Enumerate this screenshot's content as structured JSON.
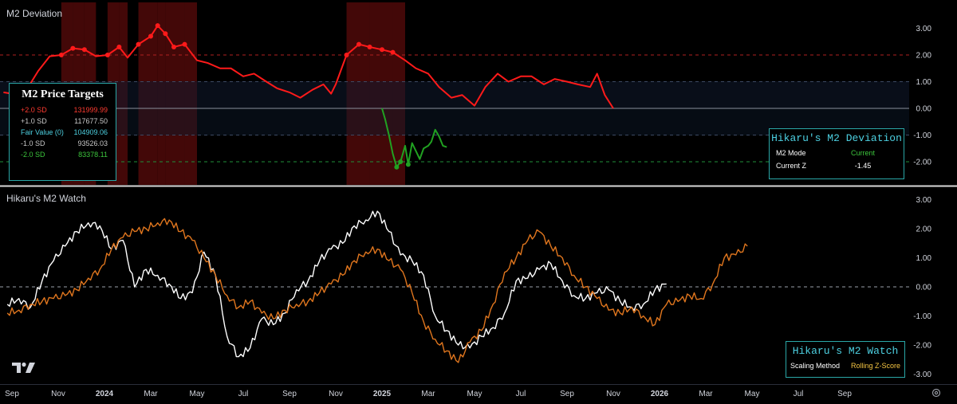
{
  "colors": {
    "red_series": "#ff1a1a",
    "green_series": "#21a121",
    "white_series": "#ffffff",
    "orange_series": "#e0761e",
    "teal_border": "#2aa7a7",
    "teal_text": "#4dd0e1"
  },
  "top_panel": {
    "title": "M2 Deviation"
  },
  "bottom_panel": {
    "title": "Hikaru's M2 Watch"
  },
  "price_targets": {
    "title": "M2 Price Targets",
    "rows": [
      {
        "label": "+2.0 SD",
        "value": "131999.99",
        "color": "#ff3b30"
      },
      {
        "label": "+1.0 SD",
        "value": "117677.50",
        "color": "#c8c8c8"
      },
      {
        "label": "Fair Value (0)",
        "value": "104909.06",
        "color": "#4dd0e1"
      },
      {
        "label": "-1.0 SD",
        "value": "93526.03",
        "color": "#c8c8c8"
      },
      {
        "label": "-2.0 SD",
        "value": "83378.11",
        "color": "#3cc43c"
      }
    ]
  },
  "deviation_box": {
    "title": "Hikaru's M2 Deviation",
    "rows": [
      {
        "key": "M2 Mode",
        "value": "Current",
        "color": "#3cc43c"
      },
      {
        "key": "Current Z",
        "value": "-1.45",
        "color": "#ffffff"
      }
    ]
  },
  "watch_box": {
    "title": "Hikaru's M2 Watch",
    "key": "Scaling Method",
    "value": "Rolling Z-Score",
    "value_color": "#f5c542"
  },
  "icons": {
    "logo": "tradingview-logo-icon",
    "settings": "gear-icon"
  },
  "chart_data": [
    {
      "type": "line",
      "title": "M2 Deviation",
      "x_axis_labels": [
        "Sep",
        "Nov",
        "2024",
        "Mar",
        "May",
        "Jul",
        "Sep",
        "Nov",
        "2025",
        "Mar",
        "May",
        "Jul",
        "Sep",
        "Nov",
        "2026",
        "Mar",
        "May",
        "Jul",
        "Sep"
      ],
      "y_ticks": [
        "3.00",
        "2.00",
        "1.00",
        "0.00",
        "-1.00",
        "-2.00"
      ],
      "ylim": [
        -2.85,
        3.5
      ],
      "reference_lines": [
        2.0,
        1.0,
        0.0,
        -1.0,
        -2.0
      ],
      "series": [
        {
          "color": "#ff1a1a",
          "x": [
            "Aug 20",
            "Sep 1",
            "Sep 20",
            "Oct 5",
            "Oct 20",
            "Nov 5",
            "Nov 20",
            "Dec 5",
            "Dec 20",
            "Jan 5",
            "Jan 20",
            "Feb 1",
            "Feb 15",
            "Mar 1",
            "Mar 10",
            "Mar 20",
            "Apr 1",
            "Apr 15",
            "May 1",
            "May 15",
            "Jun 1",
            "Jun 15",
            "Jul 1",
            "Jul 15",
            "Aug 1",
            "Aug 15",
            "Sep 1",
            "Sep 15",
            "Oct 1",
            "Oct 15",
            "Oct 25",
            "Nov 1",
            "Nov 15",
            "Dec 1",
            "Dec 15",
            "Jan 1",
            "Jan 15",
            "Feb 1",
            "Feb 15",
            "Mar 1",
            "Mar 15",
            "Apr 1",
            "Apr 15",
            "May 1",
            "May 15",
            "Jun 1",
            "Jun 15",
            "Jul 1",
            "Jul 15",
            "Aug 1",
            "Aug 15",
            "Sep 1",
            "Sep 15",
            "Oct 1",
            "Oct 10",
            "Oct 20",
            "Nov 1"
          ],
          "y": [
            0.6,
            0.55,
            0.7,
            1.4,
            1.95,
            2.0,
            2.25,
            2.2,
            1.95,
            2.0,
            2.3,
            1.9,
            2.4,
            2.7,
            3.1,
            2.8,
            2.3,
            2.4,
            1.8,
            1.7,
            1.5,
            1.5,
            1.2,
            1.3,
            1.0,
            0.75,
            0.6,
            0.4,
            0.7,
            0.9,
            0.55,
            0.9,
            2.0,
            2.4,
            2.3,
            2.2,
            2.1,
            1.8,
            1.5,
            1.3,
            0.8,
            0.4,
            0.5,
            0.1,
            0.8,
            1.3,
            1.0,
            1.2,
            1.2,
            0.9,
            1.1,
            1.0,
            0.9,
            0.8,
            1.3,
            0.5,
            0.0
          ]
        },
        {
          "color": "#21a121",
          "x": [
            "Nov 1",
            "Nov 5",
            "Nov 10",
            "Nov 15",
            "Nov 20",
            "Nov 25",
            "Dec 1",
            "Dec 5",
            "Dec 10",
            "Dec 15",
            "Dec 20",
            "Dec 25",
            "Jan 1",
            "Jan 5",
            "Jan 10",
            "Jan 15",
            "Jan 20",
            "Jan 25"
          ],
          "y": [
            0.0,
            -0.4,
            -1.0,
            -1.7,
            -2.2,
            -2.0,
            -1.4,
            -2.1,
            -1.3,
            -1.6,
            -1.9,
            -1.5,
            -1.4,
            -1.25,
            -0.8,
            -1.05,
            -1.4,
            -1.45
          ]
        }
      ]
    },
    {
      "type": "line",
      "title": "Hikaru's M2 Watch",
      "y_ticks": [
        "3.00",
        "2.00",
        "1.00",
        "0.00",
        "-1.00",
        "-2.00",
        "-3.00"
      ],
      "ylim": [
        -3.25,
        3.35
      ],
      "reference_lines": [
        0.0
      ],
      "series": [
        {
          "color": "#ffffff",
          "x": [
            "Aug 25",
            "Sep 10",
            "Sep 25",
            "Oct 10",
            "Oct 25",
            "Nov 10",
            "Nov 25",
            "Dec 10",
            "Dec 25",
            "Jan 10",
            "Jan 25",
            "Feb 10",
            "Feb 25",
            "Mar 10",
            "Mar 25",
            "Apr 10",
            "Apr 25",
            "May 10",
            "May 25",
            "Jun 10",
            "Jun 25",
            "Jul 10",
            "Jul 25",
            "Aug 10",
            "Aug 25",
            "Sep 10",
            "Sep 25",
            "Oct 10",
            "Oct 25",
            "Nov 10",
            "Nov 25",
            "Dec 10",
            "Dec 25",
            "Jan 10",
            "Jan 25",
            "Feb 10",
            "Feb 25",
            "Mar 10",
            "Mar 25",
            "Apr 10",
            "Apr 25",
            "May 10",
            "May 25",
            "Jun 10",
            "Jun 25",
            "Jul 10",
            "Jul 25",
            "Aug 10",
            "Aug 25",
            "Sep 10",
            "Sep 25",
            "Oct 10",
            "Oct 25",
            "Nov 10",
            "Nov 25",
            "Dec 10",
            "Dec 25",
            "Jan 10"
          ],
          "y": [
            -0.6,
            -0.4,
            -0.7,
            0.2,
            0.9,
            1.4,
            1.9,
            2.2,
            2.1,
            1.3,
            1.6,
            0.0,
            0.6,
            0.4,
            0.1,
            -0.4,
            -0.2,
            1.2,
            0.4,
            -1.7,
            -2.4,
            -2.1,
            -1.1,
            -1.3,
            -0.9,
            -0.1,
            0.2,
            0.9,
            1.3,
            1.5,
            2.1,
            2.3,
            2.6,
            1.9,
            1.1,
            0.9,
            0.4,
            -1.0,
            -1.5,
            -2.0,
            -2.1,
            -1.7,
            -1.4,
            -0.9,
            0.2,
            0.3,
            0.6,
            0.8,
            0.2,
            -0.3,
            -0.4,
            -0.2,
            -0.1,
            -0.5,
            -0.7,
            -0.6,
            -0.1,
            0.1
          ]
        },
        {
          "color": "#e0761e",
          "x": [
            "Aug 25",
            "Sep 10",
            "Sep 25",
            "Oct 10",
            "Oct 25",
            "Nov 10",
            "Nov 25",
            "Dec 10",
            "Dec 25",
            "Jan 10",
            "Jan 25",
            "Feb 10",
            "Feb 25",
            "Mar 10",
            "Mar 25",
            "Apr 10",
            "Apr 25",
            "May 10",
            "May 25",
            "Jun 10",
            "Jun 25",
            "Jul 10",
            "Jul 25",
            "Aug 10",
            "Aug 25",
            "Sep 10",
            "Sep 25",
            "Oct 10",
            "Oct 25",
            "Nov 10",
            "Nov 25",
            "Dec 10",
            "Dec 25",
            "Jan 10",
            "Jan 25",
            "Feb 10",
            "Feb 25",
            "Mar 10",
            "Mar 25",
            "Apr 10",
            "Apr 25",
            "May 10",
            "May 25",
            "Jun 10",
            "Jun 25",
            "Jul 10",
            "Jul 25",
            "Aug 10",
            "Aug 25",
            "Sep 10",
            "Sep 25",
            "Oct 10",
            "Oct 25",
            "Nov 10",
            "Nov 25",
            "Dec 10",
            "Dec 25",
            "Jan 10",
            "Jan 25",
            "Feb 10",
            "Feb 25",
            "Mar 10",
            "Mar 25",
            "Apr 10",
            "Apr 25"
          ],
          "y": [
            -0.9,
            -0.8,
            -0.6,
            -0.5,
            -0.4,
            -0.3,
            -0.1,
            0.3,
            0.6,
            1.3,
            1.7,
            1.9,
            2.0,
            2.2,
            2.3,
            1.9,
            1.6,
            1.0,
            0.4,
            -0.3,
            -0.7,
            -0.5,
            -0.9,
            -1.1,
            -0.8,
            -0.6,
            -0.5,
            -0.2,
            0.1,
            0.4,
            0.9,
            1.2,
            1.3,
            0.9,
            0.6,
            -0.2,
            -1.2,
            -1.8,
            -2.2,
            -2.6,
            -1.9,
            -1.5,
            -0.6,
            0.5,
            1.0,
            1.6,
            1.9,
            1.4,
            1.0,
            0.4,
            0.0,
            -0.4,
            -0.8,
            -0.9,
            -0.7,
            -1.0,
            -1.3,
            -0.6,
            -0.5,
            -0.3,
            -0.4,
            0.1,
            1.0,
            1.1,
            1.4
          ]
        }
      ]
    }
  ]
}
